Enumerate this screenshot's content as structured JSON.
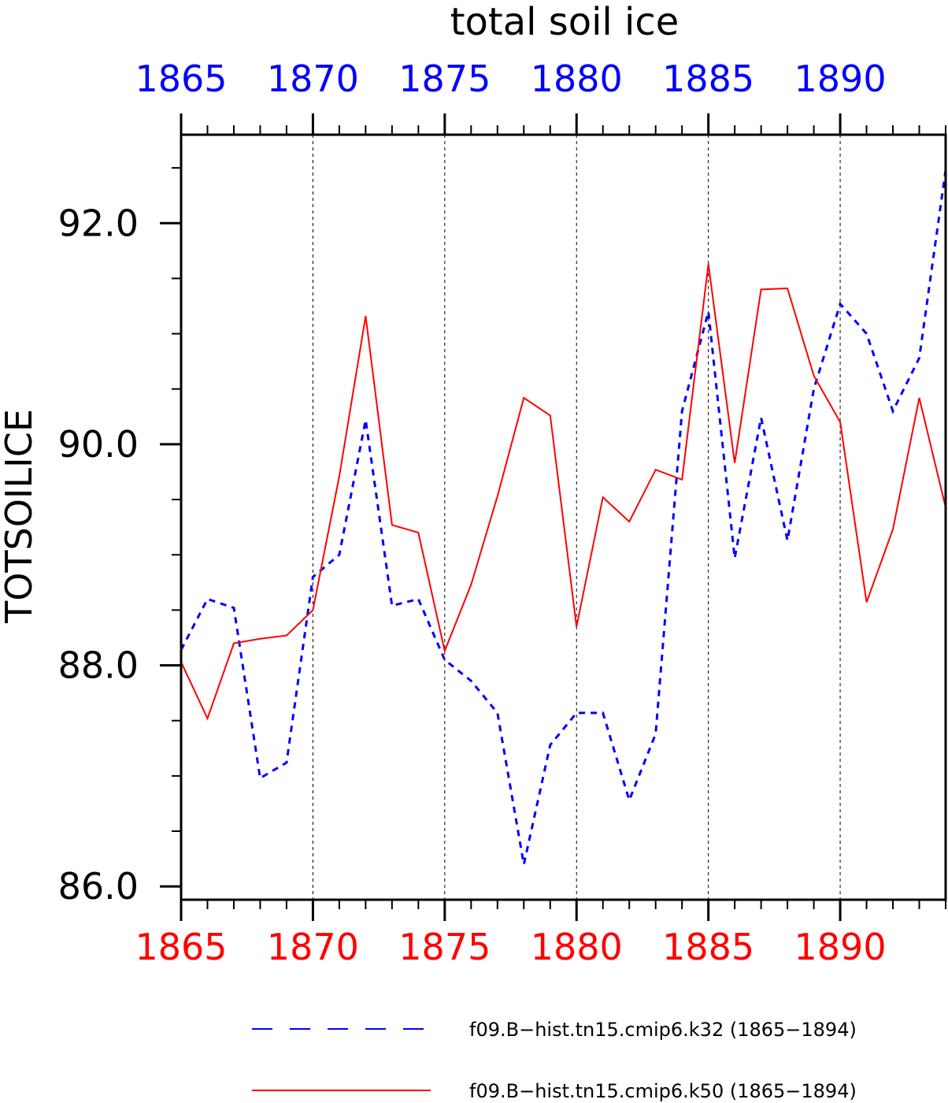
{
  "chart_data": {
    "type": "line",
    "title": "total soil ice",
    "ylabel": "TOTSOILICE",
    "xlim": [
      1865,
      1894
    ],
    "ylim": [
      85.88,
      92.8
    ],
    "yticks": [
      86.0,
      88.0,
      90.0,
      92.0
    ],
    "ytick_labels": [
      "86.0",
      "88.0",
      "90.0",
      "92.0"
    ],
    "xticks": [
      1865,
      1870,
      1875,
      1880,
      1885,
      1890
    ],
    "xtick_labels": [
      "1865",
      "1870",
      "1875",
      "1880",
      "1885",
      "1890"
    ],
    "grid": "vertical-dashed",
    "legend_position": "bottom",
    "x": [
      1865,
      1866,
      1867,
      1868,
      1869,
      1870,
      1871,
      1872,
      1873,
      1874,
      1875,
      1876,
      1877,
      1878,
      1879,
      1880,
      1881,
      1882,
      1883,
      1884,
      1885,
      1886,
      1887,
      1888,
      1889,
      1890,
      1891,
      1892,
      1893,
      1894
    ],
    "series": [
      {
        "name": "f09.B−hist.tn15.cmip6.k32 (1865−1894)",
        "color": "#0000ff",
        "style": "dashed",
        "values": [
          88.14,
          88.6,
          88.52,
          86.98,
          87.12,
          88.8,
          89.0,
          90.22,
          88.54,
          88.6,
          88.05,
          87.86,
          87.57,
          86.2,
          87.28,
          87.57,
          87.57,
          86.78,
          87.38,
          90.3,
          91.2,
          88.97,
          90.24,
          89.13,
          90.5,
          91.27,
          91.0,
          90.3,
          90.78,
          92.48
        ]
      },
      {
        "name": "f09.B−hist.tn15.cmip6.k50 (1865−1894)",
        "color": "#ff0000",
        "style": "solid",
        "values": [
          88.03,
          87.52,
          88.2,
          88.24,
          88.27,
          88.5,
          89.71,
          91.16,
          89.27,
          89.2,
          88.13,
          88.73,
          89.53,
          90.42,
          90.26,
          88.35,
          89.52,
          89.3,
          89.77,
          89.68,
          91.63,
          89.83,
          91.4,
          91.41,
          90.62,
          90.2,
          88.57,
          89.23,
          90.42,
          89.43
        ]
      }
    ]
  }
}
